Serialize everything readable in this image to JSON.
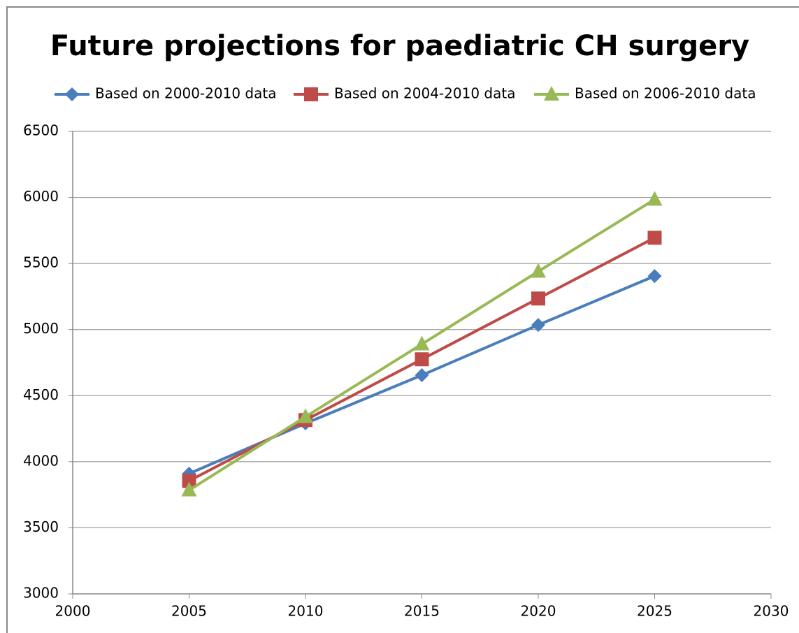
{
  "chart_data": {
    "type": "line",
    "title": "Future projections for paediatric CH surgery",
    "x": [
      2005,
      2010,
      2015,
      2020,
      2025
    ],
    "series": [
      {
        "name": "Based on 2000-2010 data",
        "color": "#4a7ebb",
        "marker": "diamond",
        "values": [
          3910,
          4290,
          4655,
          5035,
          5405
        ]
      },
      {
        "name": "Based on 2004-2010 data",
        "color": "#be4b48",
        "marker": "square",
        "values": [
          3855,
          4315,
          4775,
          5235,
          5695
        ]
      },
      {
        "name": "Based on 2006-2010 data",
        "color": "#98b954",
        "marker": "triangle",
        "values": [
          3785,
          4340,
          4890,
          5440,
          5985
        ]
      }
    ],
    "xlim": [
      2000,
      2030
    ],
    "xticks": [
      2000,
      2005,
      2010,
      2015,
      2020,
      2025,
      2030
    ],
    "ylim": [
      3000,
      6500
    ],
    "yticks": [
      3000,
      3500,
      4000,
      4500,
      5000,
      5500,
      6000,
      6500
    ],
    "grid": true,
    "legend": "top"
  }
}
